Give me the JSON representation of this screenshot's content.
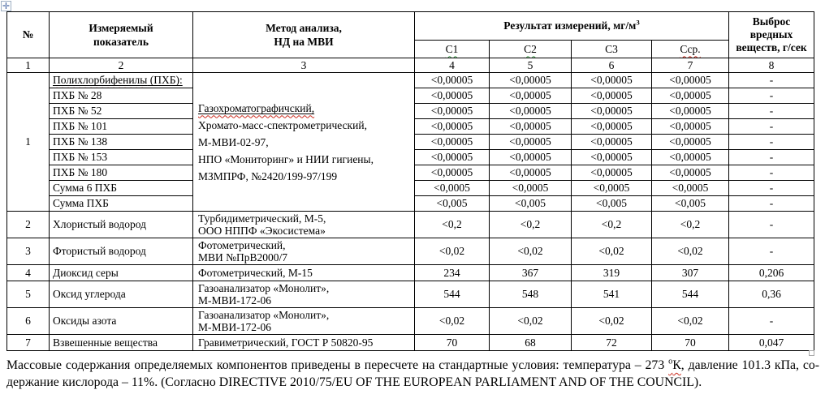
{
  "handles": {
    "move_glyph": "✛"
  },
  "table": {
    "header": {
      "no": "№",
      "indicator_line1": "Измеряемый",
      "indicator_line2": "показатель",
      "method_line1": "Метод анализа,",
      "method_line2": "НД на МВИ",
      "result_title": "Результат измерений, мг/м",
      "result_sup": "3",
      "subcols": [
        {
          "label": "С1",
          "squiggle": "green"
        },
        {
          "label": "С2",
          "squiggle": "green"
        },
        {
          "label": "С3",
          "squiggle": "none"
        },
        {
          "label": "Сср.",
          "squiggle": "red"
        }
      ],
      "emission_line1": "Выброс",
      "emission_line2": "вредных",
      "emission_line3": "веществ, г/сек",
      "numbering": [
        "1",
        "2",
        "3",
        "4",
        "5",
        "6",
        "7",
        "8"
      ]
    },
    "group1": {
      "no": "1",
      "method_lines": [
        {
          "text": "Газохроматографичский,",
          "underline": true,
          "squiggle": "red"
        },
        "Хромато-масс-спектрометрический,",
        "М-МВИ-02-97,",
        "НПО «Мониторинг» и НИИ гигиены,",
        "МЗМПРФ, №2420/199-97/199"
      ],
      "subrows": [
        {
          "indicator_sq": "Полихлорбифенилы",
          "indicator_rest": " (ПХБ):",
          "underline": true,
          "values": [
            "<0,00005",
            "<0,00005",
            "<0,00005",
            "<0,00005"
          ],
          "emission": "-"
        },
        {
          "indicator": "ПХБ № 28",
          "values": [
            "<0,00005",
            "<0,00005",
            "<0,00005",
            "<0,00005"
          ],
          "emission": "-"
        },
        {
          "indicator": "ПХБ № 52",
          "values": [
            "<0,00005",
            "<0,00005",
            "<0,00005",
            "<0,00005"
          ],
          "emission": "-"
        },
        {
          "indicator": "ПХБ № 101",
          "values": [
            "<0,00005",
            "<0,00005",
            "<0,00005",
            "<0,00005"
          ],
          "emission": "-"
        },
        {
          "indicator": "ПХБ № 138",
          "values": [
            "<0,00005",
            "<0,00005",
            "<0,00005",
            "<0,00005"
          ],
          "emission": "-"
        },
        {
          "indicator": "ПХБ № 153",
          "values": [
            "<0,00005",
            "<0,00005",
            "<0,00005",
            "<0,00005"
          ],
          "emission": "-"
        },
        {
          "indicator": "ПХБ № 180",
          "values": [
            "<0,00005",
            "<0,00005",
            "<0,00005",
            "<0,00005"
          ],
          "emission": "-"
        },
        {
          "indicator": "Сумма 6 ПХБ",
          "values": [
            "<0,0005",
            "<0,0005",
            "<0,0005",
            "<0,0005"
          ],
          "emission": "-"
        },
        {
          "indicator": "Сумма ПХБ",
          "values": [
            "<0,005",
            "<0,005",
            "<0,005",
            "<0,005"
          ],
          "emission": "-"
        }
      ]
    },
    "rows": [
      {
        "no": "2",
        "indicator": "Хлористый водород",
        "method_lines": [
          "Турбидиметрический, М-5,",
          "ООО НППФ «Экосистема»"
        ],
        "values": [
          "<0,2",
          "<0,2",
          "<0,2",
          "<0,2"
        ],
        "emission": "-"
      },
      {
        "no": "3",
        "indicator": "Фтористый водород",
        "method_lines": [
          "Фотометрический,",
          "МВИ №ПрВ2000/7"
        ],
        "values": [
          "<0,02",
          "<0,02",
          "<0,02",
          "<0,02"
        ],
        "emission": "-"
      },
      {
        "no": "4",
        "indicator": "Диоксид серы",
        "method_lines": [
          "Фотометрический, М-15"
        ],
        "values": [
          "234",
          "367",
          "319",
          "307"
        ],
        "emission": "0,206"
      },
      {
        "no": "5",
        "indicator": "Оксид углерода",
        "method_lines": [
          "Газоанализатор «Монолит»,",
          "М-МВИ-172-06"
        ],
        "values": [
          "544",
          "548",
          "541",
          "544"
        ],
        "emission": "0,36"
      },
      {
        "no": "6",
        "indicator": "Оксиды азота",
        "method_lines": [
          "Газоанализатор «Монолит»,",
          "М-МВИ-172-06"
        ],
        "values": [
          "<0,02",
          "<0,02",
          "<0,02",
          "<0,02"
        ],
        "emission": "-"
      },
      {
        "no": "7",
        "indicator": "Взвешенные вещества",
        "method_lines": [
          "Гравиметрический, ГОСТ Р 50820-95"
        ],
        "values": [
          "70",
          "68",
          "72",
          "70"
        ],
        "emission": "0,047"
      }
    ]
  },
  "footnote": {
    "line1_before": "Массовые содержания определяемых компонентов приведены в пересчете на стандартные условия: температура – 273 ",
    "line1_sup": "о",
    "line1_unit": "К",
    "line1_after": ", давление 101.3 кПа, со-",
    "line2": "держание кислорода – 11%. (Согласно DIRECTIVE 2010/75/EU OF THE EUROPEAN PARLIAMENT AND OF THE COUNCIL)."
  }
}
